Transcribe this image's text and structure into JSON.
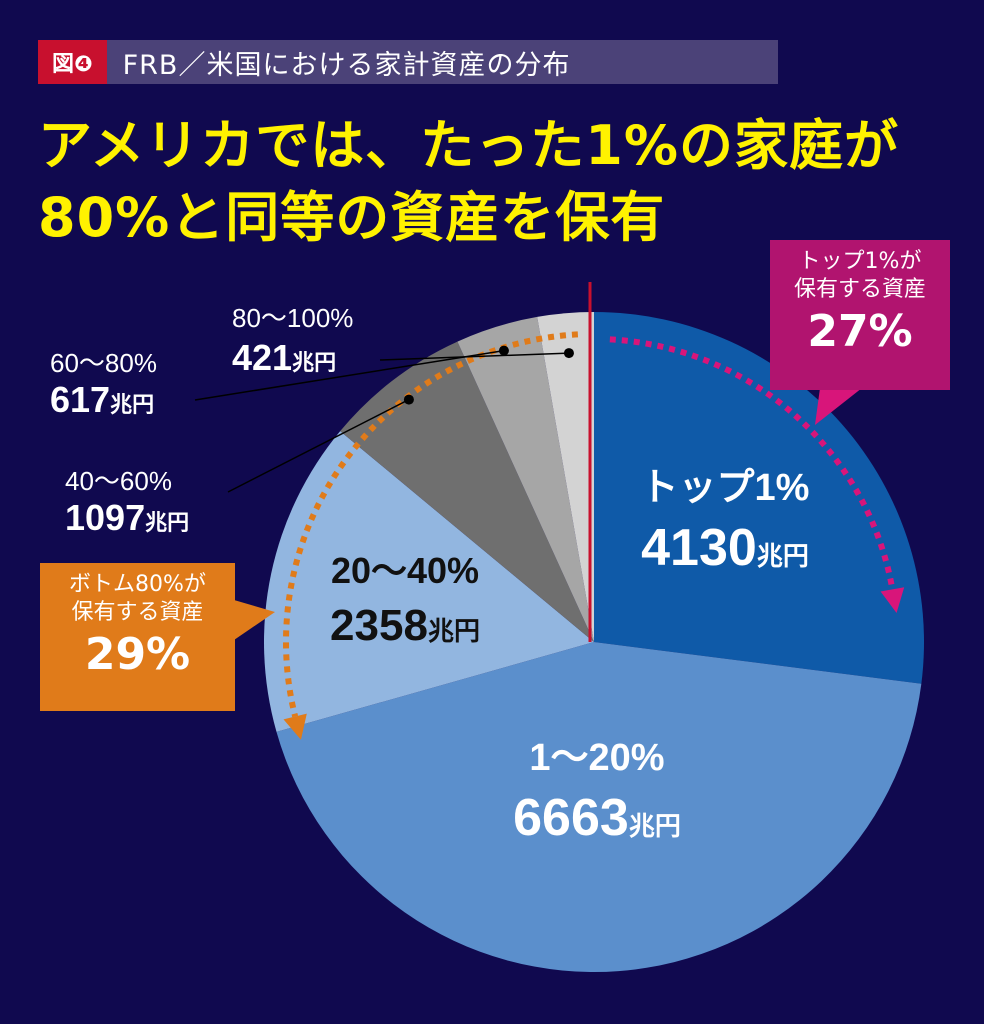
{
  "figure_label": "図❹",
  "figure_title": "FRB／米国における家計資産の分布",
  "headline": [
    "アメリカでは、たった1%の家庭が",
    "80%と同等の資産を保有"
  ],
  "callout_top": {
    "lead": [
      "トップ1%が",
      "保有する資産"
    ],
    "percent": "27%"
  },
  "callout_bottom": {
    "lead": [
      "ボトム80%が",
      "保有する資産"
    ],
    "percent": "29%"
  },
  "chart_data": {
    "type": "pie",
    "unit": "兆円",
    "slices": [
      {
        "label": "トップ1%",
        "value": 4130,
        "color": "#0f5aa8",
        "text_color": "#ffffff"
      },
      {
        "label": "1〜20%",
        "value": 6663,
        "color": "#5b8fcc",
        "text_color": "#ffffff"
      },
      {
        "label": "20〜40%",
        "value": 2358,
        "color": "#92b6e0",
        "text_color": "#111111"
      },
      {
        "label": "40〜60%",
        "value": 1097,
        "color": "#6f6f6f",
        "text_color": "#ffffff"
      },
      {
        "label": "60〜80%",
        "value": 617,
        "color": "#a6a6a6",
        "text_color": "#ffffff"
      },
      {
        "label": "80〜100%",
        "value": 421,
        "color": "#d3d3d3",
        "text_color": "#ffffff"
      }
    ],
    "value_labels": [
      "4130",
      "6663",
      "2358",
      "1097",
      "617",
      "421"
    ]
  },
  "colors": {
    "background": "#10094f",
    "headline": "#fff200",
    "top_arrow": "#d8157a",
    "bottom_arrow": "#e07b1a",
    "divider": "#c8102e"
  }
}
